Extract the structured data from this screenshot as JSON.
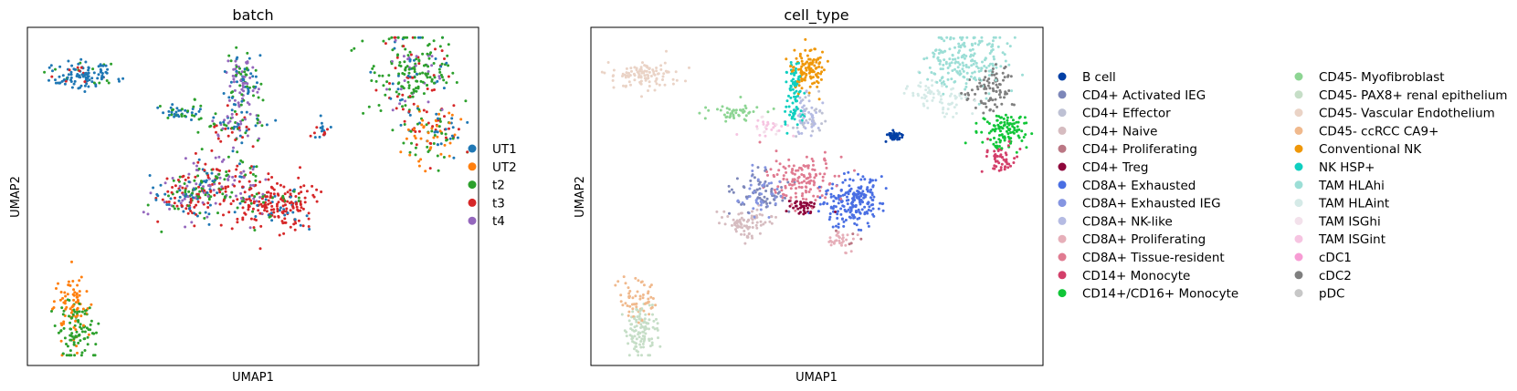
{
  "chart_data": [
    {
      "type": "scatter",
      "title": "batch",
      "xlabel": "UMAP1",
      "ylabel": "UMAP2",
      "grid": false,
      "legend": "right",
      "series": [
        {
          "name": "UT1",
          "color": "#1f77b4"
        },
        {
          "name": "UT2",
          "color": "#ff7f0e"
        },
        {
          "name": "t2",
          "color": "#2ca02c"
        },
        {
          "name": "t3",
          "color": "#d62728"
        },
        {
          "name": "t4",
          "color": "#9467bd"
        }
      ],
      "clusters": [
        {
          "center": [
            2.0,
            9.8
          ],
          "spread": [
            0.45,
            0.25
          ],
          "n": 120,
          "mix": {
            "UT1": 0.8,
            "t2": 0.1,
            "t3": 0.1
          }
        },
        {
          "center": [
            1.8,
            2.0
          ],
          "spread": [
            0.25,
            0.35
          ],
          "n": 60,
          "mix": {
            "UT2": 1.0
          }
        },
        {
          "center": [
            1.9,
            1.0
          ],
          "spread": [
            0.2,
            0.5
          ],
          "n": 110,
          "mix": {
            "t2": 0.9,
            "UT2": 0.1
          }
        },
        {
          "center": [
            4.5,
            8.5
          ],
          "spread": [
            0.35,
            0.15
          ],
          "n": 45,
          "mix": {
            "UT1": 0.6,
            "t2": 0.4
          }
        },
        {
          "center": [
            6.0,
            8.0
          ],
          "spread": [
            0.4,
            0.3
          ],
          "n": 80,
          "mix": {
            "t4": 0.3,
            "t2": 0.3,
            "t3": 0.2,
            "UT1": 0.2
          }
        },
        {
          "center": [
            6.1,
            9.6
          ],
          "spread": [
            0.2,
            0.6
          ],
          "n": 120,
          "mix": {
            "t4": 0.5,
            "t2": 0.25,
            "UT1": 0.25
          }
        },
        {
          "center": [
            5.5,
            6.0
          ],
          "spread": [
            0.6,
            0.5
          ],
          "n": 200,
          "mix": {
            "t3": 0.3,
            "t2": 0.3,
            "UT1": 0.2,
            "t4": 0.2
          }
        },
        {
          "center": [
            4.6,
            5.5
          ],
          "spread": [
            0.4,
            0.4
          ],
          "n": 110,
          "mix": {
            "t3": 0.35,
            "UT1": 0.25,
            "t2": 0.2,
            "t4": 0.2
          }
        },
        {
          "center": [
            7.0,
            5.3
          ],
          "spread": [
            0.5,
            0.4
          ],
          "n": 200,
          "mix": {
            "t3": 0.85,
            "UT1": 0.1,
            "t2": 0.05
          }
        },
        {
          "center": [
            8.2,
            7.8
          ],
          "spread": [
            0.15,
            0.2
          ],
          "n": 20,
          "mix": {
            "t3": 0.6,
            "UT1": 0.4
          }
        },
        {
          "center": [
            10.5,
            9.7
          ],
          "spread": [
            0.5,
            0.8
          ],
          "n": 230,
          "mix": {
            "t2": 0.5,
            "UT1": 0.2,
            "t3": 0.2,
            "t4": 0.1
          }
        },
        {
          "center": [
            11.0,
            7.8
          ],
          "spread": [
            0.4,
            0.5
          ],
          "n": 110,
          "mix": {
            "UT2": 0.3,
            "t2": 0.3,
            "UT1": 0.2,
            "t3": 0.2
          }
        }
      ]
    },
    {
      "type": "scatter",
      "title": "cell_type",
      "xlabel": "UMAP1",
      "ylabel": "UMAP2",
      "grid": false,
      "legend": "right",
      "series": [
        {
          "name": "B cell",
          "color": "#023fa5"
        },
        {
          "name": "CD4+ Activated IEG",
          "color": "#7d87b9"
        },
        {
          "name": "CD4+ Effector",
          "color": "#bec1d4"
        },
        {
          "name": "CD4+ Naive",
          "color": "#d6bcc0"
        },
        {
          "name": "CD4+ Proliferating",
          "color": "#bb7784"
        },
        {
          "name": "CD4+ Treg",
          "color": "#8e063b"
        },
        {
          "name": "CD8A+ Exhausted",
          "color": "#4a6fe3"
        },
        {
          "name": "CD8A+ Exhausted IEG",
          "color": "#8595e1"
        },
        {
          "name": "CD8A+ NK-like",
          "color": "#b5bbe3"
        },
        {
          "name": "CD8A+ Proliferating",
          "color": "#e6afb9"
        },
        {
          "name": "CD8A+ Tissue-resident",
          "color": "#e07b91"
        },
        {
          "name": "CD14+ Monocyte",
          "color": "#d33f6a"
        },
        {
          "name": "CD14+/CD16+ Monocyte",
          "color": "#11c638"
        },
        {
          "name": "CD45- Myofibroblast",
          "color": "#8dd593"
        },
        {
          "name": "CD45- PAX8+ renal epithelium",
          "color": "#c6dec7"
        },
        {
          "name": "CD45- Vascular Endothelium",
          "color": "#ead3c6"
        },
        {
          "name": "CD45- ccRCC CA9+",
          "color": "#f0b98d"
        },
        {
          "name": "Conventional NK",
          "color": "#ef9708"
        },
        {
          "name": "NK HSP+",
          "color": "#0fcfc0"
        },
        {
          "name": "TAM HLAhi",
          "color": "#9cded6"
        },
        {
          "name": "TAM HLAint",
          "color": "#d5eae7"
        },
        {
          "name": "TAM ISGhi",
          "color": "#f3e1eb"
        },
        {
          "name": "TAM ISGint",
          "color": "#f6c4e1"
        },
        {
          "name": "cDC1",
          "color": "#f79cd4"
        },
        {
          "name": "cDC2",
          "color": "#7f7f7f"
        },
        {
          "name": "pDC",
          "color": "#c7c7c7"
        }
      ],
      "clusters": [
        {
          "center": [
            2.0,
            9.8
          ],
          "spread": [
            0.45,
            0.25
          ],
          "n": 110,
          "mix": {
            "CD45- Vascular Endothelium": 1.0
          }
        },
        {
          "center": [
            4.3,
            8.5
          ],
          "spread": [
            0.4,
            0.15
          ],
          "n": 45,
          "mix": {
            "CD45- Myofibroblast": 1.0
          }
        },
        {
          "center": [
            5.2,
            8.0
          ],
          "spread": [
            0.25,
            0.15
          ],
          "n": 30,
          "mix": {
            "TAM ISGint": 0.7,
            "TAM ISGhi": 0.3
          }
        },
        {
          "center": [
            1.8,
            2.0
          ],
          "spread": [
            0.25,
            0.35
          ],
          "n": 60,
          "mix": {
            "CD45- ccRCC CA9+": 1.0
          }
        },
        {
          "center": [
            1.9,
            1.0
          ],
          "spread": [
            0.2,
            0.5
          ],
          "n": 110,
          "mix": {
            "CD45- PAX8+ renal epithelium": 1.0
          }
        },
        {
          "center": [
            6.2,
            10.0
          ],
          "spread": [
            0.2,
            0.4
          ],
          "n": 110,
          "mix": {
            "Conventional NK": 1.0
          }
        },
        {
          "center": [
            5.8,
            9.2
          ],
          "spread": [
            0.12,
            0.6
          ],
          "n": 80,
          "mix": {
            "NK HSP+": 1.0
          }
        },
        {
          "center": [
            6.2,
            8.3
          ],
          "spread": [
            0.2,
            0.35
          ],
          "n": 70,
          "mix": {
            "CD8A+ NK-like": 0.7,
            "CD4+ Effector": 0.3
          }
        },
        {
          "center": [
            6.0,
            6.2
          ],
          "spread": [
            0.45,
            0.4
          ],
          "n": 140,
          "mix": {
            "CD8A+ Tissue-resident": 1.0
          }
        },
        {
          "center": [
            5.0,
            5.7
          ],
          "spread": [
            0.35,
            0.35
          ],
          "n": 110,
          "mix": {
            "CD4+ Activated IEG": 0.6,
            "CD8A+ Exhausted IEG": 0.4
          }
        },
        {
          "center": [
            4.6,
            4.7
          ],
          "spread": [
            0.3,
            0.25
          ],
          "n": 80,
          "mix": {
            "CD4+ Naive": 1.0
          }
        },
        {
          "center": [
            6.1,
            5.2
          ],
          "spread": [
            0.18,
            0.15
          ],
          "n": 40,
          "mix": {
            "CD4+ Treg": 1.0
          }
        },
        {
          "center": [
            7.3,
            5.4
          ],
          "spread": [
            0.4,
            0.4
          ],
          "n": 210,
          "mix": {
            "CD8A+ Exhausted": 1.0
          }
        },
        {
          "center": [
            7.0,
            4.1
          ],
          "spread": [
            0.25,
            0.2
          ],
          "n": 35,
          "mix": {
            "CD8A+ Proliferating": 0.8,
            "CD4+ Proliferating": 0.2
          }
        },
        {
          "center": [
            8.4,
            7.7
          ],
          "spread": [
            0.1,
            0.1
          ],
          "n": 40,
          "mix": {
            "B cell": 1.0
          }
        },
        {
          "center": [
            10.2,
            10.3
          ],
          "spread": [
            0.5,
            0.6
          ],
          "n": 200,
          "mix": {
            "TAM HLAhi": 1.0
          }
        },
        {
          "center": [
            9.5,
            9.0
          ],
          "spread": [
            0.4,
            0.3
          ],
          "n": 70,
          "mix": {
            "TAM HLAint": 1.0
          }
        },
        {
          "center": [
            10.8,
            9.2
          ],
          "spread": [
            0.3,
            0.4
          ],
          "n": 90,
          "mix": {
            "cDC2": 1.0
          }
        },
        {
          "center": [
            11.2,
            7.9
          ],
          "spread": [
            0.3,
            0.3
          ],
          "n": 110,
          "mix": {
            "CD14+/CD16+ Monocyte": 1.0
          }
        },
        {
          "center": [
            11.1,
            6.9
          ],
          "spread": [
            0.2,
            0.25
          ],
          "n": 55,
          "mix": {
            "CD14+ Monocyte": 1.0
          }
        }
      ]
    }
  ]
}
